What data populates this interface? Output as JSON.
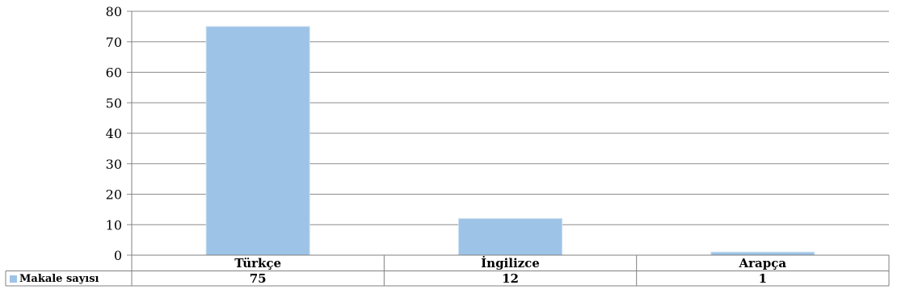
{
  "chart_data": {
    "type": "bar",
    "categories": [
      "Türkçe",
      "İngilizce",
      "Arapça"
    ],
    "series": [
      {
        "name": "Makale sayısı",
        "values": [
          75,
          12,
          1
        ]
      }
    ],
    "value_labels": [
      "75",
      "12",
      "1"
    ],
    "ylim": [
      0,
      80
    ],
    "yticks": [
      0,
      10,
      20,
      30,
      40,
      50,
      60,
      70,
      80
    ],
    "grid": true,
    "legend": "data-table-left",
    "colors": {
      "bar": "#9dc3e6",
      "bar_edge": "#c9def2",
      "grid": "#8c8c8c",
      "axis": "#808080"
    }
  }
}
